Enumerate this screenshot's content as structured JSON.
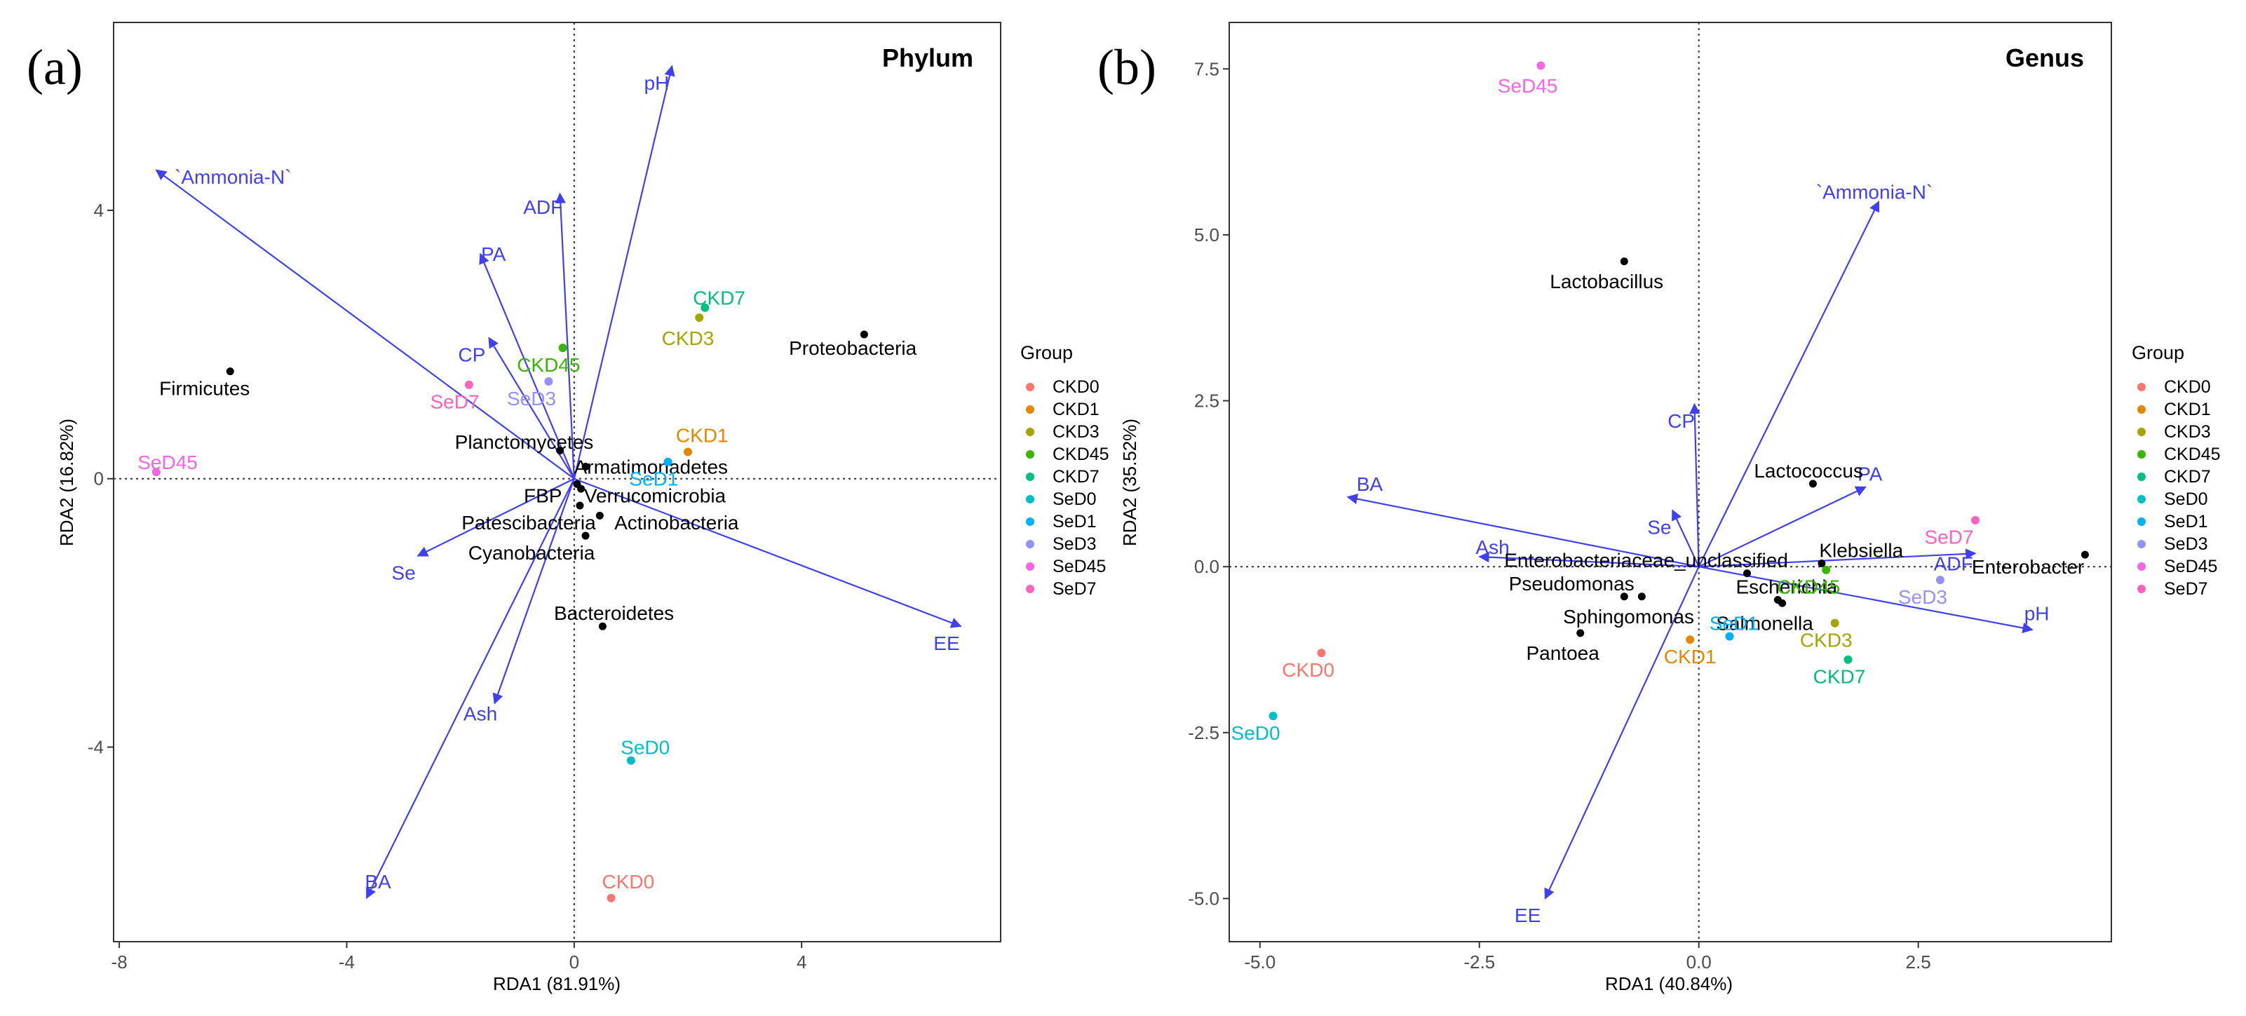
{
  "chart_data": [
    {
      "type": "scatter",
      "panel_label": "(a)",
      "title": "Phylum",
      "xlabel": "RDA1 (81.91%)",
      "ylabel": "RDA2 (16.82%)",
      "xlim": [
        -8.1,
        7.5
      ],
      "ylim": [
        -6.9,
        6.8
      ],
      "xticks": [
        -8,
        -4,
        0,
        4
      ],
      "yticks": [
        -4,
        0,
        4
      ],
      "xtick_labels": [
        "-8",
        "-4",
        "0",
        "4"
      ],
      "ytick_labels": [
        "-4",
        "0",
        "4"
      ],
      "env_color": "#4040F0",
      "env_arrows": [
        {
          "name": "pH",
          "x": 1.72,
          "y": 6.15,
          "lx": 1.45,
          "ly": 5.9
        },
        {
          "name": "`Ammonia-N`",
          "x": -7.35,
          "y": 4.6,
          "lx": -6.0,
          "ly": 4.5
        },
        {
          "name": "ADF",
          "x": -0.25,
          "y": 4.25,
          "lx": -0.55,
          "ly": 4.05
        },
        {
          "name": "PA",
          "x": -1.65,
          "y": 3.35,
          "lx": -1.42,
          "ly": 3.35
        },
        {
          "name": "CP",
          "x": -1.5,
          "y": 2.1,
          "lx": -1.8,
          "ly": 1.85
        },
        {
          "name": "Se",
          "x": -2.75,
          "y": -1.15,
          "lx": -3.0,
          "ly": -1.4
        },
        {
          "name": "Ash",
          "x": -1.4,
          "y": -3.35,
          "lx": -1.65,
          "ly": -3.5
        },
        {
          "name": "BA",
          "x": -3.65,
          "y": -6.25,
          "lx": -3.45,
          "ly": -6.0
        },
        {
          "name": "EE",
          "x": 6.8,
          "y": -2.2,
          "lx": 6.55,
          "ly": -2.45
        }
      ],
      "species": [
        {
          "name": "Proteobacteria",
          "x": 5.1,
          "y": 2.15,
          "lx": 4.9,
          "ly": 1.95
        },
        {
          "name": "Firmicutes",
          "x": -6.05,
          "y": 1.6,
          "lx": -6.5,
          "ly": 1.35
        },
        {
          "name": "Planctomycetes",
          "x": -0.25,
          "y": 0.42,
          "lx": -0.88,
          "ly": 0.55
        },
        {
          "name": "Armatimonadetes",
          "x": 0.2,
          "y": 0.18,
          "lx": 1.35,
          "ly": 0.18
        },
        {
          "name": "FBP",
          "x": 0.05,
          "y": -0.08,
          "lx": -0.55,
          "ly": -0.25
        },
        {
          "name": "Verrucomicrobia",
          "x": 0.12,
          "y": -0.15,
          "lx": 1.42,
          "ly": -0.25
        },
        {
          "name": "Patescibacteria",
          "x": 0.1,
          "y": -0.4,
          "lx": -0.8,
          "ly": -0.65
        },
        {
          "name": "Actinobacteria",
          "x": 0.45,
          "y": -0.55,
          "lx": 1.8,
          "ly": -0.65
        },
        {
          "name": "Cyanobacteria",
          "x": 0.2,
          "y": -0.85,
          "lx": -0.75,
          "ly": -1.1
        },
        {
          "name": "Bacteroidetes",
          "x": 0.5,
          "y": -2.2,
          "lx": 0.7,
          "ly": -2.0
        }
      ],
      "samples": [
        {
          "group": "CKD0",
          "x": 0.65,
          "y": -6.25,
          "lx": 0.95,
          "ly": -6.0
        },
        {
          "group": "CKD1",
          "x": 2.0,
          "y": 0.4,
          "lx": 2.25,
          "ly": 0.65
        },
        {
          "group": "CKD3",
          "x": 2.2,
          "y": 2.4,
          "lx": 2.0,
          "ly": 2.1
        },
        {
          "group": "CKD45",
          "x": -0.2,
          "y": 1.95,
          "lx": -0.45,
          "ly": 1.7
        },
        {
          "group": "CKD7",
          "x": 2.3,
          "y": 2.55,
          "lx": 2.55,
          "ly": 2.7
        },
        {
          "group": "SeD0",
          "x": 1.0,
          "y": -4.2,
          "lx": 1.25,
          "ly": -4.0
        },
        {
          "group": "SeD1",
          "x": 1.65,
          "y": 0.25,
          "lx": 1.4,
          "ly": 0.0
        },
        {
          "group": "SeD3",
          "x": -0.45,
          "y": 1.45,
          "lx": -0.75,
          "ly": 1.2
        },
        {
          "group": "SeD45",
          "x": -7.35,
          "y": 0.1,
          "lx": -7.15,
          "ly": 0.25
        },
        {
          "group": "SeD7",
          "x": -1.85,
          "y": 1.4,
          "lx": -2.1,
          "ly": 1.15
        }
      ]
    },
    {
      "type": "scatter",
      "panel_label": "(b)",
      "title": "Genus",
      "xlabel": "RDA1 (40.84%)",
      "ylabel": "RDA2 (35.52%)",
      "xlim": [
        -5.35,
        4.7
      ],
      "ylim": [
        -5.65,
        8.2
      ],
      "xticks": [
        -5.0,
        -2.5,
        0.0,
        2.5
      ],
      "yticks": [
        -5.0,
        -2.5,
        0.0,
        2.5,
        5.0,
        7.5
      ],
      "xtick_labels": [
        "-5.0",
        "-2.5",
        "0.0",
        "2.5"
      ],
      "ytick_labels": [
        "-5.0",
        "-2.5",
        "0.0",
        "2.5",
        "5.0",
        "7.5"
      ],
      "env_color": "#4040F0",
      "env_arrows": [
        {
          "name": "`Ammonia-N`",
          "x": 2.05,
          "y": 5.5,
          "lx": 2.0,
          "ly": 5.65
        },
        {
          "name": "CP",
          "x": -0.05,
          "y": 2.45,
          "lx": -0.2,
          "ly": 2.2
        },
        {
          "name": "BA",
          "x": -4.0,
          "y": 1.05,
          "lx": -3.75,
          "ly": 1.25
        },
        {
          "name": "PA",
          "x": 1.9,
          "y": 1.2,
          "lx": 1.95,
          "ly": 1.4
        },
        {
          "name": "Se",
          "x": -0.3,
          "y": 0.85,
          "lx": -0.45,
          "ly": 0.6
        },
        {
          "name": "Ash",
          "x": -2.5,
          "y": 0.15,
          "lx": -2.35,
          "ly": 0.3
        },
        {
          "name": "ADF",
          "x": 3.15,
          "y": 0.2,
          "lx": 2.9,
          "ly": 0.05
        },
        {
          "name": "pH",
          "x": 3.8,
          "y": -0.95,
          "lx": 3.85,
          "ly": -0.7
        },
        {
          "name": "EE",
          "x": -1.75,
          "y": -5.0,
          "lx": -1.95,
          "ly": -5.25
        }
      ],
      "species": [
        {
          "name": "Lactobacillus",
          "x": -0.85,
          "y": 4.6,
          "lx": -1.05,
          "ly": 4.3
        },
        {
          "name": "Lactococcus",
          "x": 1.3,
          "y": 1.25,
          "lx": 1.25,
          "ly": 1.45
        },
        {
          "name": "Klebsiella",
          "x": 1.4,
          "y": 0.05,
          "lx": 1.85,
          "ly": 0.25
        },
        {
          "name": "Enterobacter",
          "x": 4.4,
          "y": 0.18,
          "lx": 3.75,
          "ly": 0.0
        },
        {
          "name": "Enterobacteriaceae_unclassified",
          "x": 0.55,
          "y": -0.1,
          "lx": -0.6,
          "ly": 0.1
        },
        {
          "name": "Pseudomonas",
          "x": -0.85,
          "y": -0.45,
          "lx": -1.45,
          "ly": -0.25
        },
        {
          "name": "Escherichia",
          "x": 0.9,
          "y": -0.5,
          "lx": 1.0,
          "ly": -0.3
        },
        {
          "name": "Sphingomonas",
          "x": -0.65,
          "y": -0.45,
          "lx": -0.8,
          "ly": -0.75
        },
        {
          "name": "Salmonella",
          "x": 0.95,
          "y": -0.55,
          "lx": 0.75,
          "ly": -0.85
        },
        {
          "name": "Pantoea",
          "x": -1.35,
          "y": -1.0,
          "lx": -1.55,
          "ly": -1.3
        }
      ],
      "samples": [
        {
          "group": "CKD0",
          "x": -4.3,
          "y": -1.3,
          "lx": -4.45,
          "ly": -1.55
        },
        {
          "group": "CKD1",
          "x": -0.1,
          "y": -1.1,
          "lx": -0.1,
          "ly": -1.35
        },
        {
          "group": "CKD3",
          "x": 1.55,
          "y": -0.85,
          "lx": 1.45,
          "ly": -1.1
        },
        {
          "group": "CKD45",
          "x": 1.45,
          "y": -0.05,
          "lx": 1.25,
          "ly": -0.3
        },
        {
          "group": "CKD7",
          "x": 1.7,
          "y": -1.4,
          "lx": 1.6,
          "ly": -1.65
        },
        {
          "group": "SeD0",
          "x": -4.85,
          "y": -2.25,
          "lx": -5.05,
          "ly": -2.5
        },
        {
          "group": "SeD1",
          "x": 0.35,
          "y": -1.05,
          "lx": 0.4,
          "ly": -0.85
        },
        {
          "group": "SeD3",
          "x": 2.75,
          "y": -0.2,
          "lx": 2.55,
          "ly": -0.45
        },
        {
          "group": "SeD45",
          "x": -1.8,
          "y": 7.55,
          "lx": -1.95,
          "ly": 7.25
        },
        {
          "group": "SeD7",
          "x": 3.15,
          "y": 0.7,
          "lx": 2.85,
          "ly": 0.45
        }
      ]
    }
  ],
  "legend": {
    "title": "Group",
    "items": [
      {
        "label": "CKD0",
        "color": "#F8766D"
      },
      {
        "label": "CKD1",
        "color": "#E58700"
      },
      {
        "label": "CKD3",
        "color": "#A3A500"
      },
      {
        "label": "CKD45",
        "color": "#39B600"
      },
      {
        "label": "CKD7",
        "color": "#00BF7D"
      },
      {
        "label": "SeD0",
        "color": "#00BFC4"
      },
      {
        "label": "SeD1",
        "color": "#00B0F6"
      },
      {
        "label": "SeD3",
        "color": "#9590FF"
      },
      {
        "label": "SeD45",
        "color": "#F566E3"
      },
      {
        "label": "SeD7",
        "color": "#FF62BC"
      }
    ]
  }
}
